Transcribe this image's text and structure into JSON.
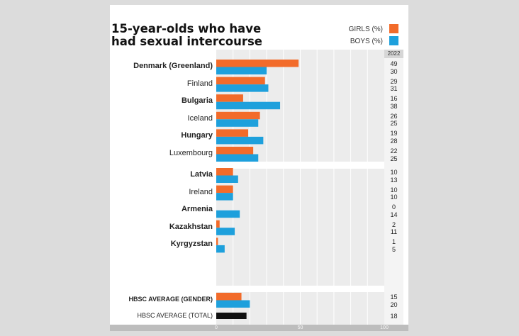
{
  "chart_data": {
    "type": "bar",
    "orientation": "horizontal",
    "title": "15-year-olds who have had sexual intercourse",
    "year": "2022",
    "series": [
      {
        "name": "GIRLS (%)",
        "color": "#f26b2a"
      },
      {
        "name": "BOYS (%)",
        "color": "#1ea0dc"
      }
    ],
    "groups": [
      {
        "categories": [
          {
            "name": "Denmark (Greenland)",
            "bold": true,
            "girls": 49,
            "boys": 30
          },
          {
            "name": "Finland",
            "bold": false,
            "girls": 29,
            "boys": 31
          },
          {
            "name": "Bulgaria",
            "bold": true,
            "girls": 16,
            "boys": 38
          },
          {
            "name": "Iceland",
            "bold": false,
            "girls": 26,
            "boys": 25
          },
          {
            "name": "Hungary",
            "bold": true,
            "girls": 19,
            "boys": 28
          },
          {
            "name": "Luxembourg",
            "bold": false,
            "girls": 22,
            "boys": 25
          }
        ]
      },
      {
        "categories": [
          {
            "name": "Latvia",
            "bold": true,
            "girls": 10,
            "boys": 13
          },
          {
            "name": "Ireland",
            "bold": false,
            "girls": 10,
            "boys": 10
          },
          {
            "name": "Armenia",
            "bold": true,
            "girls": 0,
            "boys": 14
          },
          {
            "name": "Kazakhstan",
            "bold": true,
            "girls": 2,
            "boys": 11
          },
          {
            "name": "Kyrgyzstan",
            "bold": true,
            "girls": 1,
            "boys": 5
          }
        ]
      }
    ],
    "averages": {
      "gender": {
        "name": "HBSC AVERAGE (GENDER)",
        "girls": 15,
        "boys": 20
      },
      "total": {
        "name": "HBSC AVERAGE (TOTAL)",
        "value": 18,
        "color": "#111111"
      }
    },
    "xlim": [
      0,
      100
    ],
    "xticks": [
      "0",
      "50",
      "100"
    ],
    "grid": true
  }
}
